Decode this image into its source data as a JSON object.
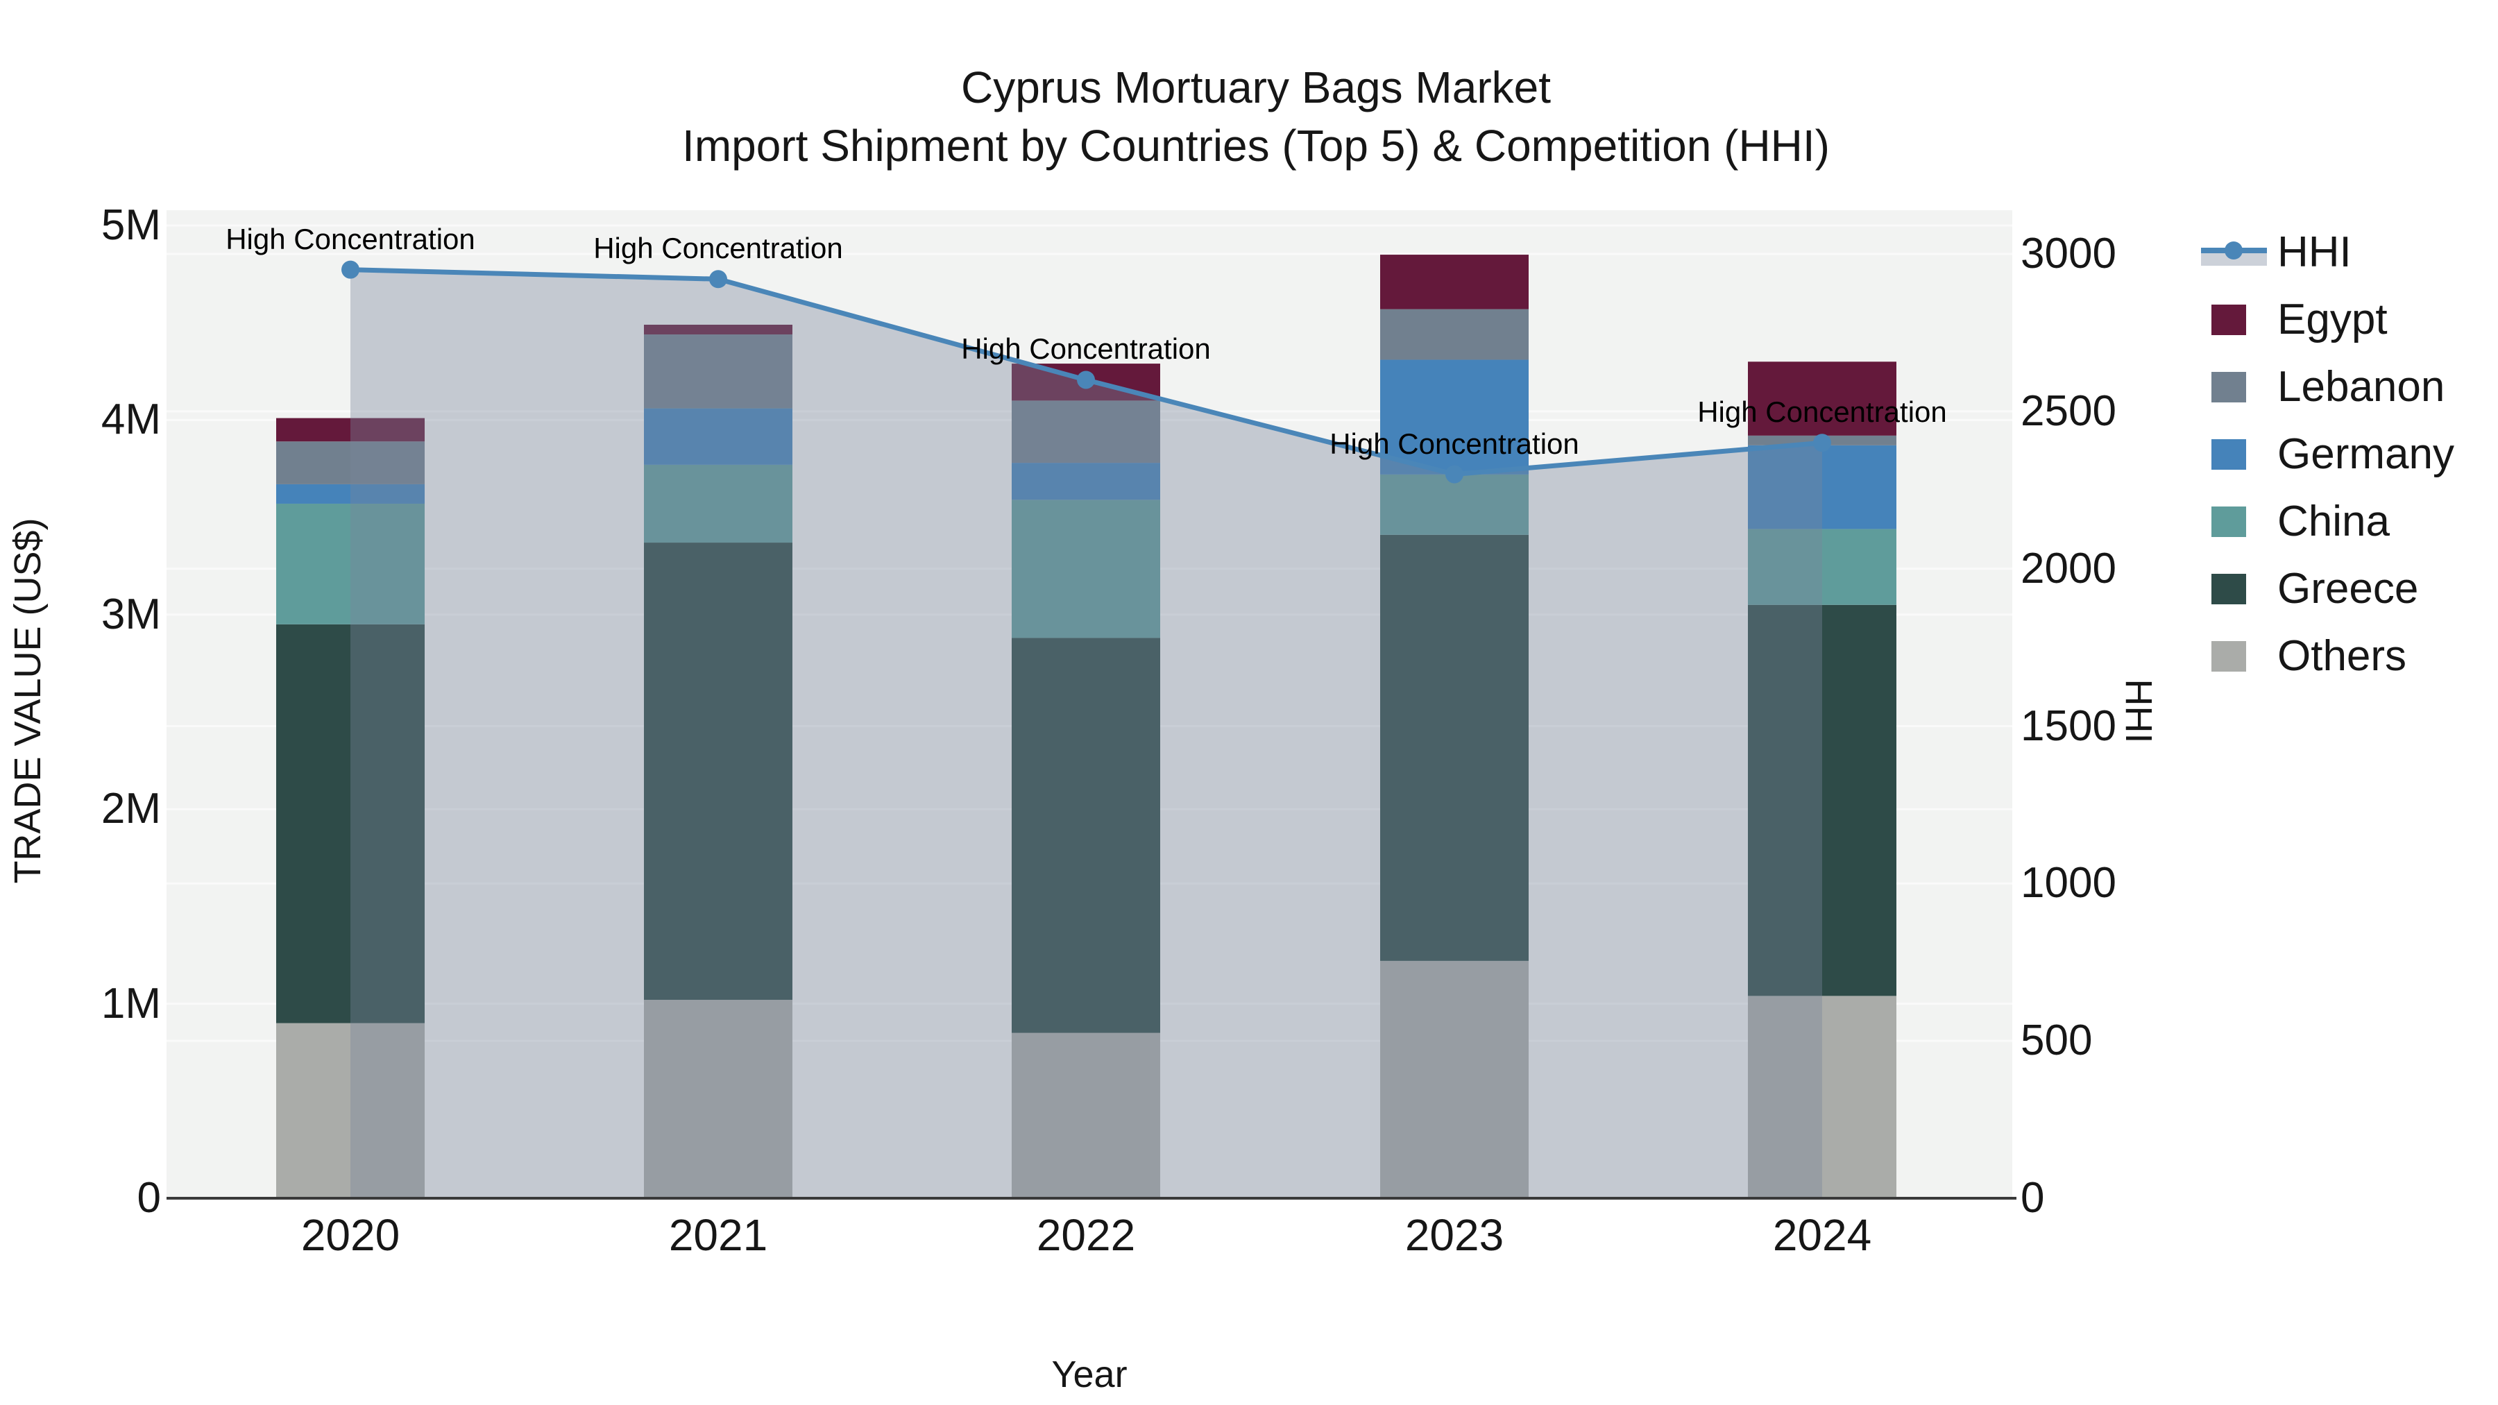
{
  "title": {
    "line1": "Cyprus Mortuary Bags Market",
    "line2": "Import Shipment by Countries (Top 5) & Competition (HHI)"
  },
  "axes": {
    "left": {
      "title": "TRADE VALUE (US$)",
      "ticks": [
        {
          "label": "0",
          "value": 0
        },
        {
          "label": "1M",
          "value": 1000000
        },
        {
          "label": "2M",
          "value": 2000000
        },
        {
          "label": "3M",
          "value": 3000000
        },
        {
          "label": "4M",
          "value": 4000000
        },
        {
          "label": "5M",
          "value": 5000000
        }
      ]
    },
    "right": {
      "title": "HHI",
      "ticks": [
        {
          "label": "0",
          "value": 0
        },
        {
          "label": "500",
          "value": 500
        },
        {
          "label": "1000",
          "value": 1000
        },
        {
          "label": "1500",
          "value": 1500
        },
        {
          "label": "2000",
          "value": 2000
        },
        {
          "label": "2500",
          "value": 2500
        },
        {
          "label": "3000",
          "value": 3000
        }
      ]
    },
    "x": {
      "title": "Year"
    }
  },
  "legend": {
    "items": [
      {
        "label": "HHI",
        "type": "line",
        "color": "#4a86b8"
      },
      {
        "label": "Egypt",
        "type": "swatch",
        "color": "#64193b"
      },
      {
        "label": "Lebanon",
        "type": "swatch",
        "color": "#71808f"
      },
      {
        "label": "Germany",
        "type": "swatch",
        "color": "#4583ba"
      },
      {
        "label": "China",
        "type": "swatch",
        "color": "#5f9c9b"
      },
      {
        "label": "Greece",
        "type": "swatch",
        "color": "#2e4b48"
      },
      {
        "label": "Others",
        "type": "swatch",
        "color": "#aaaca9"
      }
    ]
  },
  "chart_data": {
    "type": "bar",
    "title": "Cyprus Mortuary Bags Market",
    "subtitle": "Import Shipment by Countries (Top 5) & Competition (HHI)",
    "xlabel": "Year",
    "ylabel": "TRADE VALUE (US$)",
    "ylabel_right": "HHI",
    "categories": [
      "2020",
      "2021",
      "2022",
      "2023",
      "2024"
    ],
    "stack_order_bottom_to_top": [
      "Others",
      "Greece",
      "China",
      "Germany",
      "Lebanon",
      "Egypt"
    ],
    "series": [
      {
        "name": "Others",
        "color": "#aaaca9",
        "values": [
          900000,
          1020000,
          850000,
          1220000,
          1040000
        ]
      },
      {
        "name": "Greece",
        "color": "#2e4b48",
        "values": [
          2050000,
          2350000,
          2030000,
          2190000,
          2010000
        ]
      },
      {
        "name": "China",
        "color": "#5f9c9b",
        "values": [
          620000,
          400000,
          710000,
          310000,
          390000
        ]
      },
      {
        "name": "Germany",
        "color": "#4583ba",
        "values": [
          100000,
          290000,
          190000,
          590000,
          430000
        ]
      },
      {
        "name": "Lebanon",
        "color": "#71808f",
        "values": [
          220000,
          380000,
          320000,
          260000,
          50000
        ]
      },
      {
        "name": "Egypt",
        "color": "#64193b",
        "values": [
          120000,
          50000,
          190000,
          280000,
          380000
        ]
      }
    ],
    "line_series": {
      "name": "HHI",
      "axis": "right",
      "color": "#4a86b8",
      "area_fill": "rgba(120,134,155,0.38)",
      "values": [
        2950,
        2920,
        2600,
        2300,
        2400
      ]
    },
    "ylim_left": [
      0,
      5000000
    ],
    "ylim_right": [
      0,
      3000
    ],
    "grid": true,
    "legend_position": "right",
    "annotations": [
      {
        "text": "High Concentration",
        "category": "2020"
      },
      {
        "text": "High Concentration",
        "category": "2021"
      },
      {
        "text": "High Concentration",
        "category": "2022"
      },
      {
        "text": "High Concentration",
        "category": "2023"
      },
      {
        "text": "High Concentration",
        "category": "2024"
      }
    ]
  }
}
